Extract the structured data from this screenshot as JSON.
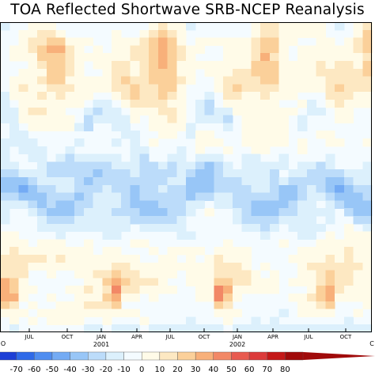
{
  "chart_data": {
    "type": "heatmap",
    "title": "TOA Reflected Shortwave SRB-NCEP Reanalysis",
    "x_tick_labels": [
      "JUL",
      "OCT",
      "JAN",
      "APR",
      "JUL",
      "OCT",
      "JAN",
      "APR",
      "JUL",
      "OCT"
    ],
    "x_year_labels": [
      "2001",
      "2002"
    ],
    "x_edge_labels": [
      "O",
      "C"
    ],
    "colorbar": {
      "labels": [
        "-70",
        "-60",
        "-50",
        "-40",
        "-30",
        "-20",
        "-10",
        "0",
        "10",
        "20",
        "30",
        "40",
        "50",
        "60",
        "70",
        "80"
      ],
      "colors": [
        "#1d3fd6",
        "#2f6ae8",
        "#4f8df0",
        "#74abf4",
        "#98c6f7",
        "#bcdcfa",
        "#dcf0fc",
        "#f4fbff",
        "#fffbe8",
        "#fde8c2",
        "#fbd09a",
        "#f8b07a",
        "#f28866",
        "#e85a4f",
        "#dc3a3a",
        "#c41818",
        "#a00a0a"
      ]
    }
  }
}
